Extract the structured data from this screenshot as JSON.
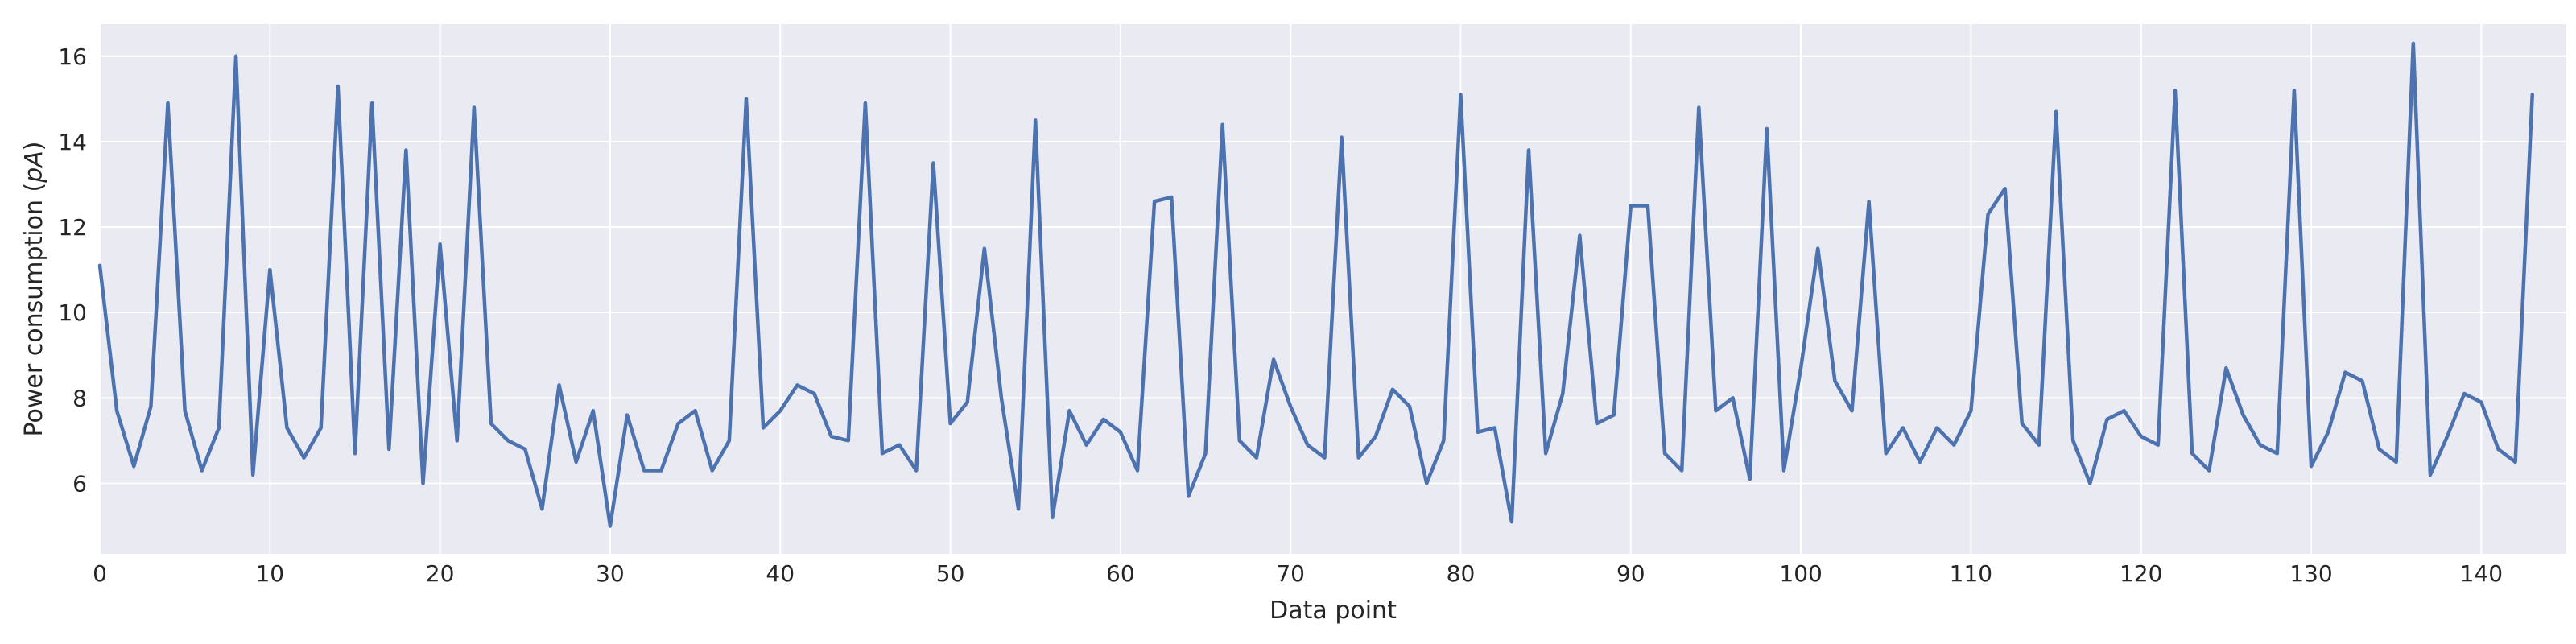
{
  "chart_data": {
    "type": "line",
    "title": "",
    "xlabel": "Data point",
    "ylabel_prefix": "Power consumption (",
    "ylabel_unit": "pA",
    "ylabel_suffix": ")",
    "xlim": [
      0,
      145
    ],
    "ylim": [
      4.35,
      16.75
    ],
    "x_ticks": [
      "0",
      "10",
      "20",
      "30",
      "40",
      "50",
      "60",
      "70",
      "80",
      "90",
      "100",
      "110",
      "120",
      "130",
      "140"
    ],
    "y_ticks": [
      "6",
      "8",
      "10",
      "12",
      "14",
      "16"
    ],
    "grid": true,
    "line_color": "#4C72B0",
    "background_color": "#EAEAF2",
    "series": [
      {
        "values": [
          11.1,
          7.7,
          6.4,
          7.8,
          14.9,
          7.7,
          6.3,
          7.3,
          16.0,
          6.2,
          11.0,
          7.3,
          6.6,
          7.3,
          15.3,
          6.7,
          14.9,
          6.8,
          13.8,
          6.0,
          11.6,
          7.0,
          14.8,
          7.4,
          7.0,
          6.8,
          5.4,
          8.3,
          6.5,
          7.7,
          5.0,
          7.6,
          6.3,
          6.3,
          7.4,
          7.7,
          6.3,
          7.0,
          15.0,
          7.3,
          7.7,
          8.3,
          8.1,
          7.1,
          7.0,
          14.9,
          6.7,
          6.9,
          6.3,
          13.5,
          7.4,
          7.9,
          11.5,
          8.0,
          5.4,
          14.5,
          5.2,
          7.7,
          6.9,
          7.5,
          7.2,
          6.3,
          12.6,
          12.7,
          5.7,
          6.7,
          14.4,
          7.0,
          6.6,
          8.9,
          7.8,
          6.9,
          6.6,
          14.1,
          6.6,
          7.1,
          8.2,
          7.8,
          6.0,
          7.0,
          15.1,
          7.2,
          7.3,
          5.1,
          13.8,
          6.7,
          8.1,
          11.8,
          7.4,
          7.6,
          12.5,
          12.5,
          6.7,
          6.3,
          14.8,
          7.7,
          8.0,
          6.1,
          14.3,
          6.3,
          8.7,
          11.5,
          8.4,
          7.7,
          12.6,
          6.7,
          7.3,
          6.5,
          7.3,
          6.9,
          7.7,
          12.3,
          12.9,
          7.4,
          6.9,
          14.7,
          7.0,
          6.0,
          7.5,
          7.7,
          7.1,
          6.9,
          15.2,
          6.7,
          6.3,
          8.7,
          7.6,
          6.9,
          6.7,
          15.2,
          6.4,
          7.2,
          8.6,
          8.4,
          6.8,
          6.5,
          16.3,
          6.2,
          7.1,
          8.1,
          7.9,
          6.8,
          6.5,
          15.1
        ]
      }
    ]
  }
}
